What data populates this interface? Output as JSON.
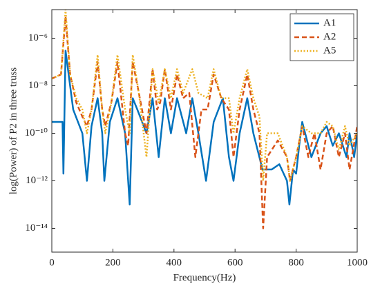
{
  "chart_data": {
    "type": "line",
    "xlabel": "Frequency(Hz)",
    "ylabel": "log(Power) of P2 in three truss",
    "xlim": [
      0,
      1000
    ],
    "xticks": [
      0,
      200,
      400,
      600,
      800,
      1000
    ],
    "ylim": [
      1e-15,
      1.6e-05
    ],
    "log_y": true,
    "yticks": [
      {
        "value": 1e-14,
        "label": "10⁻¹⁴"
      },
      {
        "value": 1e-12,
        "label": "10⁻¹²"
      },
      {
        "value": 1e-10,
        "label": "10⁻¹⁰"
      },
      {
        "value": 1e-08,
        "label": "10⁻⁸"
      },
      {
        "value": 1e-06,
        "label": "10⁻⁶"
      }
    ],
    "legend": "upper right",
    "series": [
      {
        "name": "A1",
        "color": "#0072bd",
        "style": "solid",
        "x": [
          0,
          35,
          38,
          45,
          70,
          100,
          115,
          130,
          150,
          165,
          172,
          190,
          215,
          240,
          255,
          265,
          280,
          310,
          330,
          350,
          370,
          390,
          410,
          440,
          460,
          480,
          505,
          530,
          560,
          580,
          595,
          615,
          640,
          660,
          690,
          720,
          745,
          770,
          778,
          790,
          800,
          810,
          820,
          850,
          880,
          900,
          920,
          940,
          965,
          975,
          990,
          1000
        ],
        "values": [
          3e-10,
          3e-10,
          2e-12,
          3e-07,
          1e-09,
          1e-10,
          1e-12,
          2e-10,
          3e-09,
          1e-10,
          1e-12,
          3e-10,
          3e-09,
          1e-10,
          1e-13,
          3e-09,
          1e-09,
          1e-10,
          3e-09,
          1e-11,
          3e-09,
          1e-10,
          3e-09,
          1e-10,
          3e-09,
          1e-10,
          1e-12,
          3e-10,
          3e-09,
          1e-11,
          1e-12,
          1e-10,
          3e-09,
          1e-10,
          3e-12,
          3e-12,
          5e-12,
          1e-12,
          1e-13,
          3e-12,
          2e-12,
          3e-11,
          3e-10,
          1e-11,
          1e-10,
          2e-10,
          3e-11,
          1e-10,
          1e-11,
          1e-10,
          1e-11,
          1e-10
        ]
      },
      {
        "name": "A2",
        "color": "#d95319",
        "style": "dashed",
        "x": [
          0,
          30,
          45,
          60,
          80,
          100,
          115,
          130,
          150,
          165,
          175,
          195,
          215,
          240,
          250,
          265,
          285,
          310,
          330,
          345,
          355,
          370,
          390,
          410,
          430,
          450,
          470,
          490,
          510,
          530,
          555,
          580,
          595,
          615,
          640,
          660,
          680,
          692,
          705,
          740,
          770,
          780,
          800,
          820,
          840,
          860,
          880,
          900,
          920,
          940,
          960,
          975,
          1000
        ],
        "values": [
          2e-08,
          3e-08,
          8e-06,
          3e-08,
          2e-09,
          5e-10,
          2e-10,
          1e-09,
          1e-07,
          1e-09,
          2e-10,
          2e-09,
          1e-07,
          1e-10,
          3e-11,
          1e-07,
          5e-09,
          1e-10,
          5e-08,
          1e-09,
          2e-09,
          5e-08,
          1e-09,
          3e-08,
          3e-09,
          5e-09,
          1e-11,
          1e-09,
          1e-09,
          3e-08,
          3e-09,
          1e-09,
          1e-11,
          1e-09,
          3e-08,
          1e-09,
          1e-10,
          1e-14,
          1e-11,
          5e-11,
          1e-11,
          1e-12,
          1e-11,
          2e-10,
          1e-11,
          1e-10,
          3e-12,
          1e-10,
          2e-10,
          1e-11,
          1e-10,
          3e-12,
          2e-10
        ]
      },
      {
        "name": "A5",
        "color": "#edb120",
        "style": "dotted",
        "x": [
          0,
          30,
          45,
          60,
          80,
          100,
          115,
          130,
          150,
          165,
          175,
          195,
          215,
          240,
          255,
          265,
          285,
          310,
          330,
          350,
          370,
          390,
          410,
          430,
          460,
          480,
          510,
          530,
          555,
          580,
          595,
          615,
          640,
          660,
          680,
          692,
          705,
          740,
          770,
          780,
          800,
          820,
          850,
          880,
          900,
          920,
          940,
          960,
          975,
          1000
        ],
        "values": [
          2e-08,
          3e-08,
          1.6e-05,
          3e-08,
          3e-09,
          1e-09,
          1e-10,
          1e-09,
          2e-07,
          1e-09,
          1e-10,
          2e-09,
          2e-07,
          1e-09,
          1e-10,
          2e-07,
          5e-09,
          1e-11,
          5e-08,
          2e-09,
          5e-08,
          3e-09,
          5e-08,
          5e-09,
          5e-08,
          5e-09,
          3e-09,
          5e-08,
          3e-09,
          3e-09,
          1e-10,
          3e-09,
          5e-08,
          3e-09,
          5e-10,
          1e-12,
          1e-10,
          1e-10,
          1e-11,
          1e-12,
          1e-11,
          2e-10,
          1e-10,
          1e-10,
          3e-10,
          2e-10,
          2e-11,
          2e-10,
          3e-11,
          1e-10
        ]
      }
    ]
  }
}
